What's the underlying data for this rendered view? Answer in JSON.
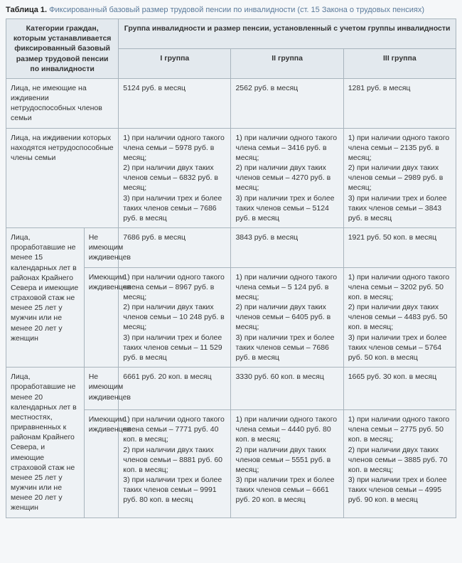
{
  "caption": {
    "label": "Таблица 1.",
    "text": "Фиксированный базовый размер трудовой пенсии по инвалидности (ст. 15 Закона о трудовых пенсиях)"
  },
  "head": {
    "cat": "Категории граждан, которым устанавливается фиксированный базовый размер трудовой пенсии по инвалидности",
    "group": "Группа инвалидности и размер пенсии, установленный с учетом группы инвалидности",
    "g1": "I группа",
    "g2": "II группа",
    "g3": "III группа"
  },
  "r1": {
    "cat": "Лица, не имеющие на иждивении нетрудоспособных членов семьи",
    "g1": "5124 руб. в месяц",
    "g2": "2562 руб. в месяц",
    "g3": "1281 руб. в месяц"
  },
  "r2": {
    "cat": "Лица, на иждивении которых находятся нетрудоспособные члены семьи",
    "g1": "1) при наличии одного такого члена семьи – 5978 руб. в месяц;\n2) при наличии двух таких членов семьи – 6832 руб. в месяц;\n3) при наличии трех и более таких членов семьи – 7686 руб. в месяц",
    "g2": "1) при наличии одного такого члена семьи – 3416 руб. в месяц;\n2) при наличии двух таких членов семьи – 4270 руб. в месяц;\n3) при наличии трех и более таких членов семьи – 5124 руб. в месяц",
    "g3": "1) при наличии одного такого члена семьи – 2135 руб. в месяц;\n2) при наличии двух таких членов семьи – 2989 руб. в месяц;\n3) при наличии трех и более таких членов семьи – 3843 руб. в месяц"
  },
  "r3": {
    "cat": "Лица, проработавшие не менее 15 календарных лет в районах Крайнего Севера и имеющие страховой стаж не менее 25 лет у мужчин или не менее 20 лет у женщин",
    "a": {
      "sub": "Не имеющим иждивенцев",
      "g1": "7686 руб. в месяц",
      "g2": "3843 руб. в месяц",
      "g3": "1921 руб. 50 коп. в месяц"
    },
    "b": {
      "sub": "Имеющим иждивенцев",
      "g1": "1) при наличии одного такого члена семьи – 8967 руб. в месяц;\n2) при наличии двух таких членов семьи – 10 248 руб. в месяц;\n3) при наличии трех и более таких членов семьи – 11 529 руб. в месяц",
      "g2": "1) при наличии одного такого члена семьи – 5 124 руб. в месяц;\n2) при наличии двух таких членов семьи – 6405 руб. в месяц;\n3) при наличии трех и более таких членов семьи – 7686 руб. в месяц",
      "g3": "1) при наличии одного такого члена семьи – 3202 руб. 50 коп. в месяц;\n2) при наличии двух таких членов семьи – 4483 руб. 50 коп. в месяц;\n3) при наличии трех и более таких членов семьи – 5764 руб. 50 коп. в месяц"
    }
  },
  "r4": {
    "cat": "Лица, проработавшие не менее 20 календарных лет в местностях, приравненных к районам Крайнего Севера, и имеющие страховой стаж не менее 25 лет у мужчин или не менее 20 лет у женщин",
    "a": {
      "sub": "Не имеющим иждивенцев",
      "g1": "6661 руб. 20 коп. в месяц",
      "g2": "3330 руб. 60 коп. в месяц",
      "g3": "1665 руб. 30 коп. в месяц"
    },
    "b": {
      "sub": "Имеющим иждивенцев",
      "g1": "1) при наличии одного такого члена семьи – 7771 руб. 40 коп. в месяц;\n2) при наличии двух таких членов семьи – 8881 руб. 60 коп. в месяц;\n3) при наличии трех и более таких членов семьи – 9991 руб. 80 коп. в месяц",
      "g2": "1) при наличии одного такого члена семьи – 4440 руб. 80 коп. в месяц;\n2) при наличии двух таких членов семьи – 5551 руб. в месяц;\n3) при наличии трех и более таких членов семьи – 6661 руб. 20 коп. в месяц",
      "g3": "1) при наличии одного такого члена семьи – 2775 руб. 50 коп. в месяц;\n2) при наличии двух таких членов семьи – 3885 руб. 70 коп. в месяц;\n3) при наличии трех и более таких членов семьи – 4995 руб. 90 коп. в месяц"
    }
  }
}
